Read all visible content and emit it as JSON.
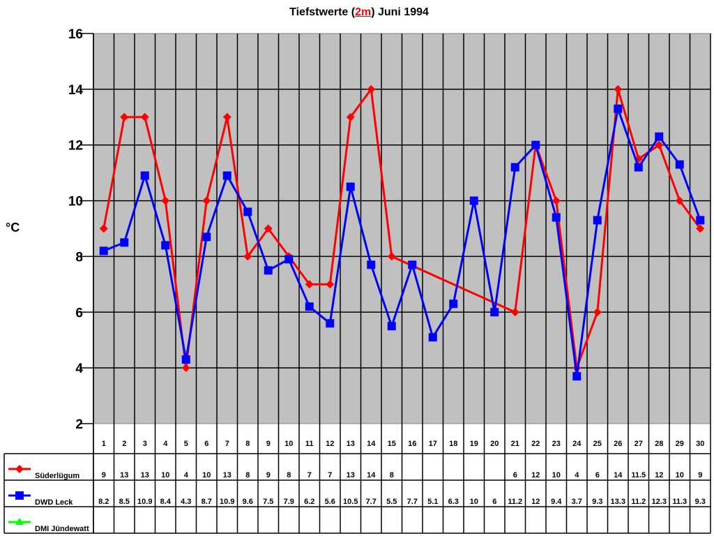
{
  "header": {
    "title_prefix": "Tiefstwerte (",
    "title_highlight": "2m",
    "title_suffix": ") Juni 1994"
  },
  "axis": {
    "ylabel": "°C",
    "yticks": [
      "2",
      "4",
      "6",
      "8",
      "10",
      "12",
      "14",
      "16"
    ]
  },
  "colors": {
    "plot_bg": "#c0c0c0",
    "suederluegum": "#ff0000",
    "dwd_leck": "#0000ff",
    "dmi_juendewatt": "#00ff00"
  },
  "chart_data": {
    "type": "line",
    "title": "Tiefstwerte (2m) Juni 1994",
    "xlabel": "",
    "ylabel": "°C",
    "ylim": [
      2,
      16
    ],
    "yticks": [
      2,
      4,
      6,
      8,
      10,
      12,
      14,
      16
    ],
    "grid": true,
    "legend_position": "data-table-left",
    "x": [
      1,
      2,
      3,
      4,
      5,
      6,
      7,
      8,
      9,
      10,
      11,
      12,
      13,
      14,
      15,
      16,
      17,
      18,
      19,
      20,
      21,
      22,
      23,
      24,
      25,
      26,
      27,
      28,
      29,
      30
    ],
    "series": [
      {
        "name": "Süderlügum",
        "color": "#ff0000",
        "marker": "diamond",
        "values": [
          9,
          13,
          13,
          10,
          4,
          10,
          13,
          8,
          9,
          8,
          7,
          7,
          13,
          14,
          8,
          null,
          null,
          null,
          null,
          null,
          6,
          12,
          10,
          4,
          6,
          14,
          11.5,
          12,
          10,
          9
        ]
      },
      {
        "name": "DWD Leck",
        "color": "#0000ff",
        "marker": "square",
        "values": [
          8.2,
          8.5,
          10.9,
          8.4,
          4.3,
          8.7,
          10.9,
          9.6,
          7.5,
          7.9,
          6.2,
          5.6,
          10.5,
          7.7,
          5.5,
          7.7,
          5.1,
          6.3,
          10,
          6,
          11.2,
          12,
          9.4,
          3.7,
          9.3,
          13.3,
          11.2,
          12.3,
          11.3,
          9.3
        ]
      },
      {
        "name": "DMI Jündewatt",
        "color": "#00ff00",
        "marker": "triangle",
        "values": [
          null,
          null,
          null,
          null,
          null,
          null,
          null,
          null,
          null,
          null,
          null,
          null,
          null,
          null,
          null,
          null,
          null,
          null,
          null,
          null,
          null,
          null,
          null,
          null,
          null,
          null,
          null,
          null,
          null,
          null
        ]
      }
    ]
  },
  "table": {
    "days": [
      "1",
      "2",
      "3",
      "4",
      "5",
      "6",
      "7",
      "8",
      "9",
      "10",
      "11",
      "12",
      "13",
      "14",
      "15",
      "16",
      "17",
      "18",
      "19",
      "20",
      "21",
      "22",
      "23",
      "24",
      "25",
      "26",
      "27",
      "28",
      "29",
      "30"
    ],
    "rows": [
      {
        "label": "Süderlügum",
        "cells": [
          "9",
          "13",
          "13",
          "10",
          "4",
          "10",
          "13",
          "8",
          "9",
          "8",
          "7",
          "7",
          "13",
          "14",
          "8",
          "",
          "",
          "",
          "",
          "",
          "6",
          "12",
          "10",
          "4",
          "6",
          "14",
          "11.5",
          "12",
          "10",
          "9"
        ]
      },
      {
        "label": "DWD Leck",
        "cells": [
          "8.2",
          "8.5",
          "10.9",
          "8.4",
          "4.3",
          "8.7",
          "10.9",
          "9.6",
          "7.5",
          "7.9",
          "6.2",
          "5.6",
          "10.5",
          "7.7",
          "5.5",
          "7.7",
          "5.1",
          "6.3",
          "10",
          "6",
          "11.2",
          "12",
          "9.4",
          "3.7",
          "9.3",
          "13.3",
          "11.2",
          "12.3",
          "11.3",
          "9.3"
        ]
      },
      {
        "label": "DMI Jündewatt",
        "cells": [
          "",
          "",
          "",
          "",
          "",
          "",
          "",
          "",
          "",
          "",
          "",
          "",
          "",
          "",
          "",
          "",
          "",
          "",
          "",
          "",
          "",
          "",
          "",
          "",
          "",
          "",
          "",
          "",
          "",
          ""
        ]
      }
    ]
  }
}
